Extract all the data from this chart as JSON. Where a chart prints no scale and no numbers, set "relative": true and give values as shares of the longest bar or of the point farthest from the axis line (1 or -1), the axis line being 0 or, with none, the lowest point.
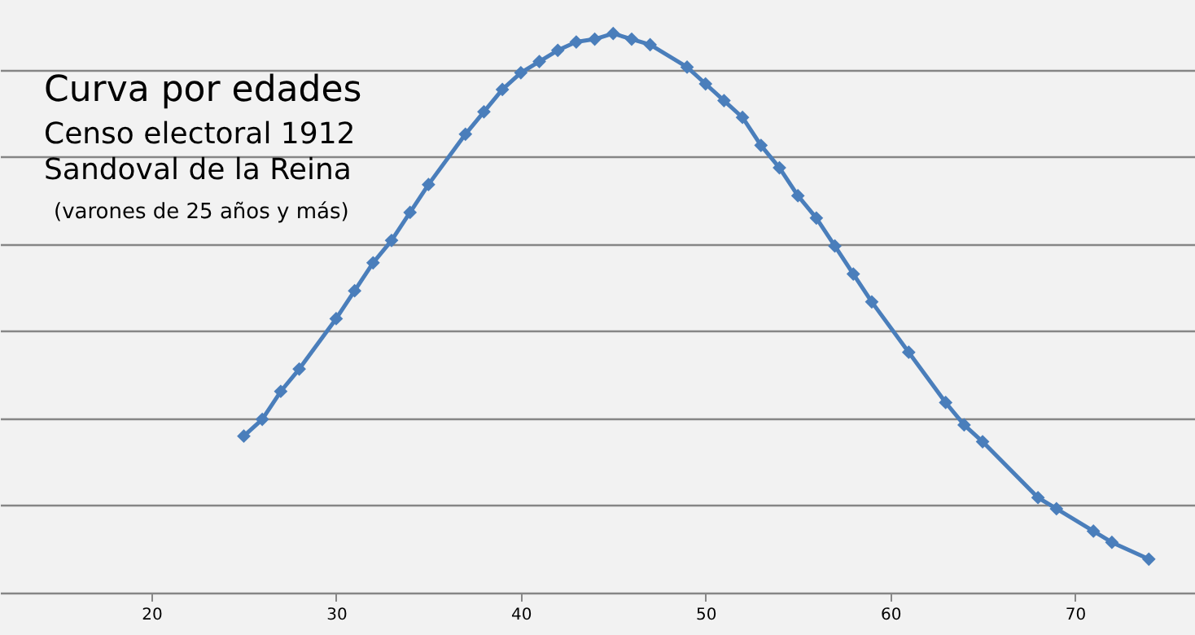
{
  "chart_data": {
    "type": "line",
    "title": "Curva por edades",
    "subtitle": "Censo electoral 1912\nSandoval de la Reina",
    "annotations": [
      "(varones de 25 años y más)"
    ],
    "relative": true,
    "grid": "y",
    "marker": "diamond",
    "line_style": "solid",
    "xlim": [
      11.8,
      76.5
    ],
    "xticks": [
      20,
      30,
      40,
      50,
      60,
      70
    ],
    "x": [
      25,
      26,
      27,
      28,
      30,
      31,
      32,
      33,
      34,
      35,
      37,
      38,
      39,
      40,
      41,
      42,
      43,
      44,
      45,
      46,
      47,
      49,
      50,
      51,
      52,
      53,
      54,
      55,
      56,
      57,
      58,
      59,
      61,
      63,
      64,
      65,
      68,
      69,
      71,
      72,
      74
    ],
    "series": [
      {
        "color": "#4a7ebb",
        "values": [
          0.28,
          0.31,
          0.36,
          0.4,
          0.49,
          0.54,
          0.59,
          0.63,
          0.68,
          0.73,
          0.82,
          0.86,
          0.9,
          0.93,
          0.95,
          0.97,
          0.985,
          0.99,
          1,
          0.99,
          0.98,
          0.94,
          0.91,
          0.88,
          0.85,
          0.8,
          0.76,
          0.71,
          0.67,
          0.62,
          0.57,
          0.52,
          0.43,
          0.34,
          0.3,
          0.27,
          0.17,
          0.15,
          0.11,
          0.09,
          0.06
        ]
      }
    ]
  }
}
